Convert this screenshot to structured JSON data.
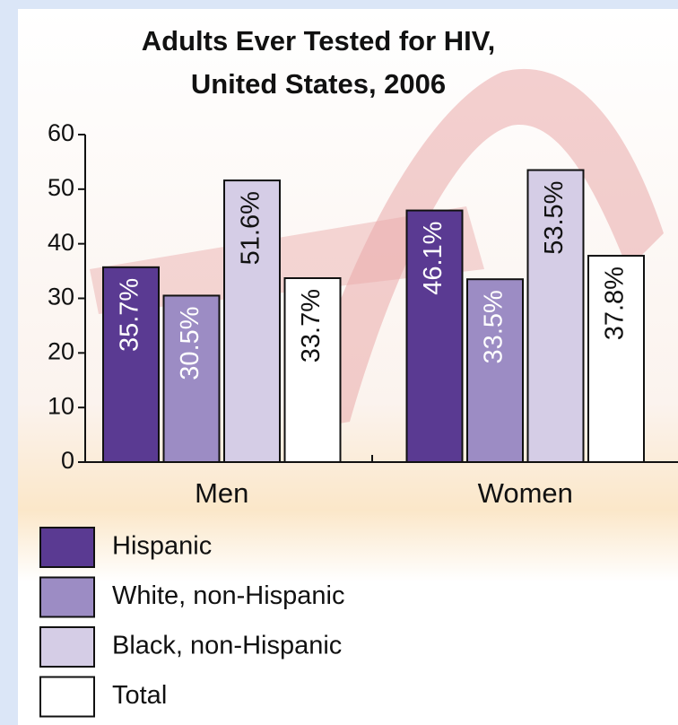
{
  "chart_data": {
    "type": "bar",
    "title": "Adults Ever Tested for HIV,",
    "subtitle": "United States, 2006",
    "categories": [
      "Men",
      "Women"
    ],
    "series": [
      {
        "name": "Hispanic",
        "color": "#5a3a92",
        "values": [
          35.7,
          46.1
        ],
        "value_labels": [
          "35.7%",
          "46.1%"
        ]
      },
      {
        "name": "White, non-Hispanic",
        "color": "#9c8cc4",
        "values": [
          30.5,
          33.5
        ],
        "value_labels": [
          "30.5%",
          "33.5%"
        ]
      },
      {
        "name": "Black, non-Hispanic",
        "color": "#d5cde6",
        "values": [
          51.6,
          53.5
        ],
        "value_labels": [
          "51.6%",
          "53.5%"
        ]
      },
      {
        "name": "Total",
        "color": "#ffffff",
        "values": [
          33.7,
          37.8
        ],
        "value_labels": [
          "33.7%",
          "37.8%"
        ]
      }
    ],
    "ylim": [
      0,
      60
    ],
    "yticks": [
      0,
      10,
      20,
      30,
      40,
      50,
      60
    ],
    "grid": false
  }
}
